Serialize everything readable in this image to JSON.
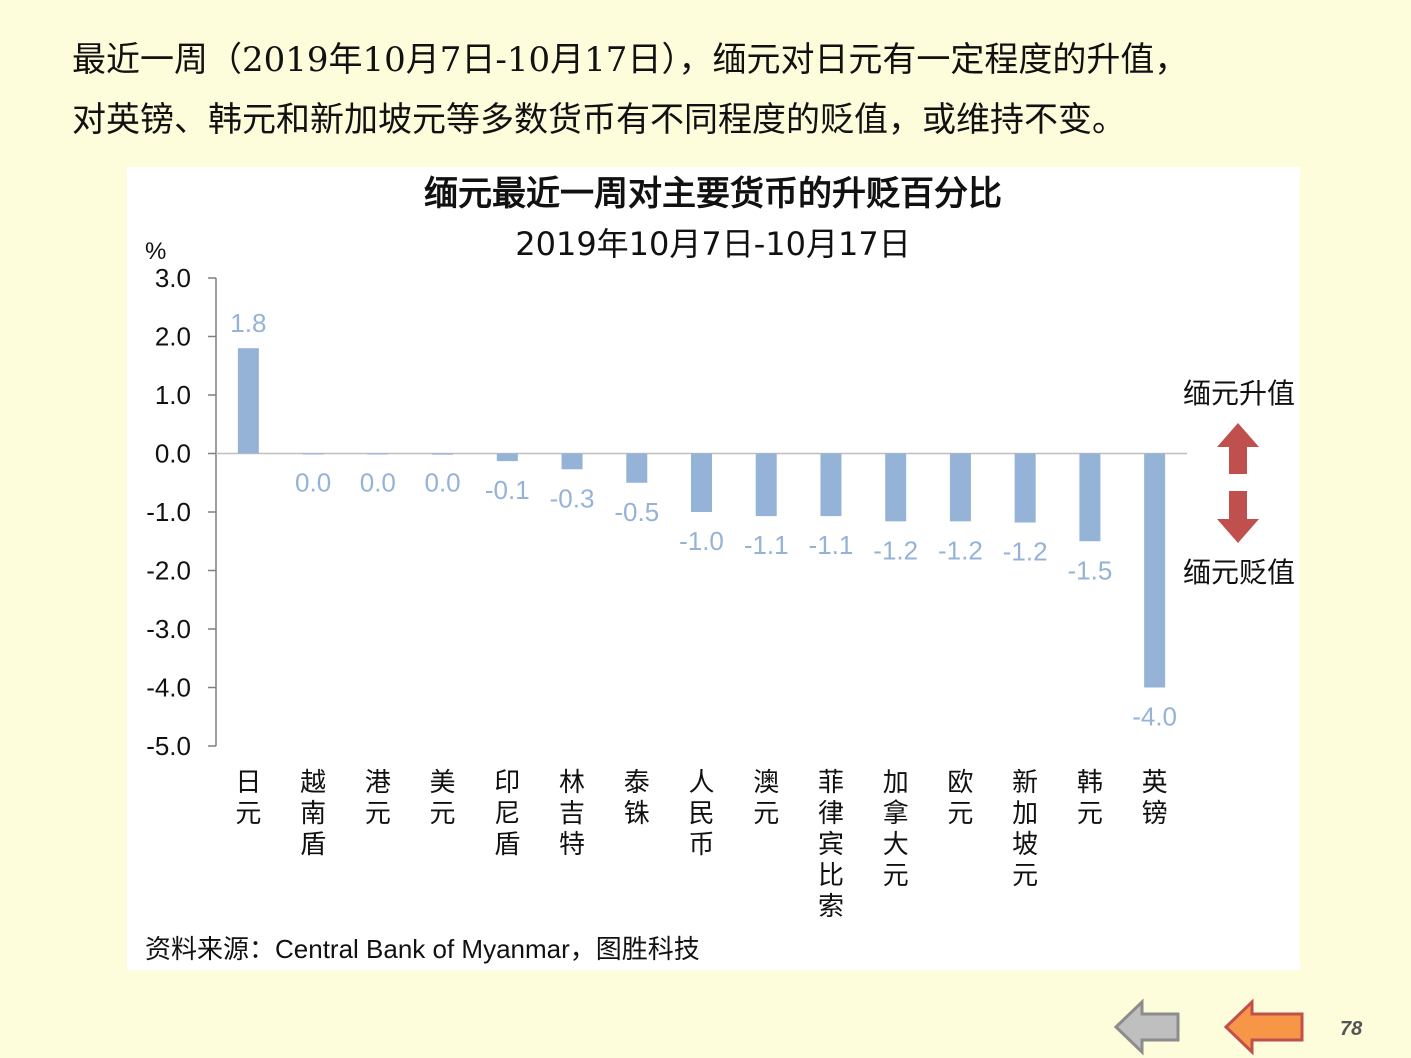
{
  "intro": {
    "line1": "最近一周（2019年10月7日-10月17日），缅元对日元有一定程度的升值，",
    "line2": "对英镑、韩元和新加坡元等多数货币有不同程度的贬值，或维持不变。"
  },
  "chart_data": {
    "type": "bar",
    "title": "缅元最近一周对主要货币的升贬百分比",
    "subtitle": "2019年10月7日-10月17日",
    "ylabel": "%",
    "ylim": [
      -5.0,
      3.0
    ],
    "yticks": [
      "3.0",
      "2.0",
      "1.0",
      "0.0",
      "-1.0",
      "-2.0",
      "-3.0",
      "-4.0",
      "-5.0"
    ],
    "categories": [
      "日元",
      "越南盾",
      "港元",
      "美元",
      "印尼盾",
      "林吉特",
      "泰铢",
      "人民币",
      "澳元",
      "菲律宾比索",
      "加拿大元",
      "欧元",
      "新加坡元",
      "韩元",
      "英镑"
    ],
    "values": [
      1.8,
      0.0,
      0.0,
      -0.02,
      -0.13,
      -0.27,
      -0.5,
      -1.0,
      -1.07,
      -1.07,
      -1.16,
      -1.16,
      -1.18,
      -1.5,
      -4.0
    ],
    "data_labels": [
      "1.8",
      "0.0",
      "0.0",
      "0.0",
      "-0.1",
      "-0.3",
      "-0.5",
      "-1.0",
      "-1.1",
      "-1.1",
      "-1.2",
      "-1.2",
      "-1.2",
      "-1.5",
      "-4.0"
    ],
    "grid": false,
    "colors": {
      "bar": "#95B3D7",
      "label": "#95B3D7",
      "arrow": "#C0504D"
    },
    "annotations": {
      "up": "缅元升值",
      "down": "缅元贬值"
    }
  },
  "source": "资料来源：Central Bank of Myanmar，图胜科技",
  "nav": {
    "back_icon": "arrow-left-icon-gray",
    "prev_icon": "arrow-left-icon-orange",
    "colors": {
      "back": "#BFBFBF",
      "prev": "#F79646"
    }
  },
  "page_number": "78"
}
